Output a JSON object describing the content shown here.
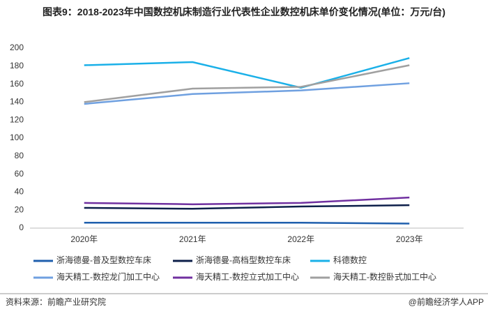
{
  "chart_data": {
    "type": "line",
    "title": "图表9：2018-2023年中国数控机床制造行业代表性企业数控机床单价变化情况(单位：万元/台)",
    "categories": [
      "2020年",
      "2021年",
      "2022年",
      "2023年"
    ],
    "series": [
      {
        "name": "浙海德曼-普及型数控车床",
        "color": "#1f5fad",
        "values": [
          6,
          6,
          6,
          5
        ]
      },
      {
        "name": "浙海德曼-高档型数控车床",
        "color": "#0d1f4a",
        "values": [
          22.5,
          21.5,
          24,
          25.5
        ]
      },
      {
        "name": "科德数控",
        "color": "#1ab0e8",
        "values": [
          181,
          184.5,
          156,
          189
        ]
      },
      {
        "name": "海天精工-数控龙门加工中心",
        "color": "#6fa0e0",
        "values": [
          138,
          149,
          153,
          161
        ]
      },
      {
        "name": "海天精工-数控立式加工中心",
        "color": "#7030a0",
        "values": [
          28,
          26.5,
          28,
          34
        ]
      },
      {
        "name": "海天精工-数控卧式加工中心",
        "color": "#a0a0a0",
        "values": [
          140,
          155,
          157,
          181
        ]
      }
    ],
    "ylim": [
      0,
      200
    ],
    "yticks": [
      0,
      20,
      40,
      60,
      80,
      100,
      120,
      140,
      160,
      180,
      200
    ],
    "source": "资料来源：前瞻产业研究院",
    "credit": "@前瞻经济学人APP"
  }
}
